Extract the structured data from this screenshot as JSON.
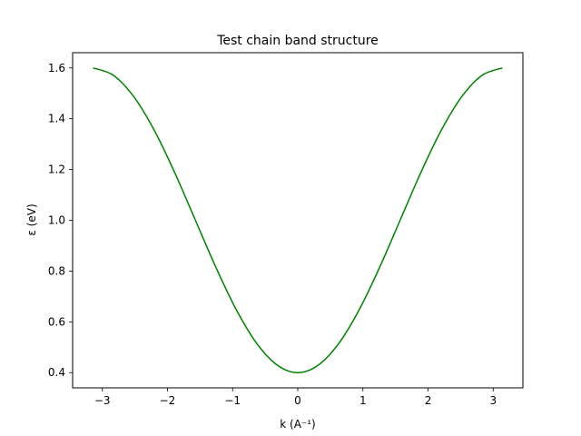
{
  "chart_data": {
    "type": "line",
    "title": "Test chain band structure",
    "xlabel": "k (A⁻¹)",
    "ylabel": "ε (eV)",
    "xlim": [
      -3.456,
      3.456
    ],
    "ylim": [
      0.34,
      1.66
    ],
    "x_ticks": [
      -3,
      -2,
      -1,
      0,
      1,
      2,
      3
    ],
    "x_tick_labels": [
      "−3",
      "−2",
      "−1",
      "0",
      "1",
      "2",
      "3"
    ],
    "y_ticks": [
      0.4,
      0.6,
      0.8,
      1.0,
      1.2,
      1.4,
      1.6
    ],
    "y_tick_labels": [
      "0.4",
      "0.6",
      "0.8",
      "1.0",
      "1.2",
      "1.4",
      "1.6"
    ],
    "grid": false,
    "series": [
      {
        "color": "#008000",
        "x": [
          -3.1416,
          -2.8274,
          -2.5133,
          -2.1991,
          -1.885,
          -1.5708,
          -1.2566,
          -0.9425,
          -0.6283,
          -0.3142,
          0,
          0.3142,
          0.6283,
          0.9425,
          1.2566,
          1.5708,
          1.885,
          2.1991,
          2.5133,
          2.8274,
          3.1416
        ],
        "y": [
          1.6,
          1.5706,
          1.4854,
          1.3527,
          1.1854,
          1.0,
          0.8146,
          0.6473,
          0.5146,
          0.4294,
          0.4,
          0.4294,
          0.5146,
          0.6473,
          0.8146,
          1.0,
          1.1854,
          1.3527,
          1.4854,
          1.5706,
          1.6
        ]
      }
    ]
  }
}
